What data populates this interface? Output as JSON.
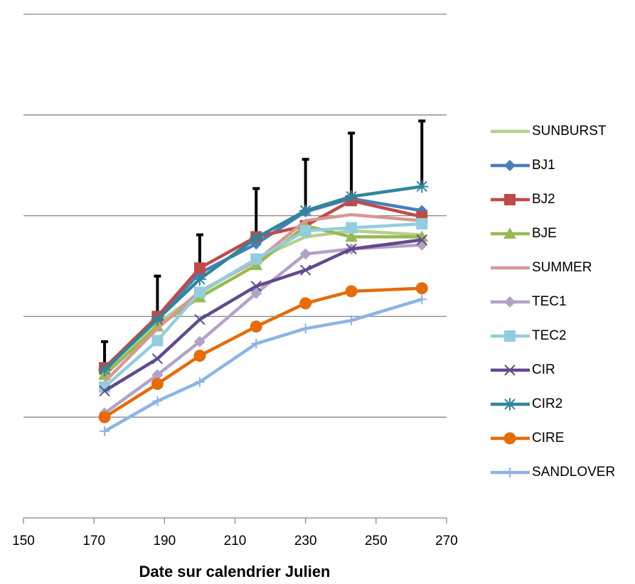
{
  "chart_data": {
    "type": "line",
    "x_label": "Date sur calendrier Julien",
    "x": [
      173,
      188,
      200,
      216,
      230,
      243,
      263
    ],
    "xlim": [
      150,
      270
    ],
    "xticks": [
      150,
      170,
      190,
      210,
      230,
      250,
      270
    ],
    "ylim": [
      0,
      5
    ],
    "yticks": [
      1,
      2,
      3,
      4,
      5
    ],
    "grid": true,
    "legend": "right",
    "series": [
      {
        "name": "SUNBURST",
        "color": "#b3d08f",
        "marker": "none",
        "values": [
          1.42,
          1.93,
          2.23,
          2.57,
          2.79,
          2.85,
          2.81
        ]
      },
      {
        "name": "BJ1",
        "color": "#4a7ebb",
        "marker": "diamond",
        "values": [
          1.46,
          1.99,
          2.43,
          2.72,
          3.04,
          3.17,
          3.05
        ]
      },
      {
        "name": "BJ2",
        "color": "#be4b48",
        "marker": "square",
        "values": [
          1.49,
          2.0,
          2.48,
          2.79,
          2.9,
          3.15,
          2.99
        ]
      },
      {
        "name": "BJE",
        "color": "#98b954",
        "marker": "triangle",
        "values": [
          1.42,
          1.9,
          2.19,
          2.51,
          2.9,
          2.79,
          2.79
        ]
      },
      {
        "name": "SUMMER",
        "color": "#d99694",
        "marker": "none",
        "values": [
          1.35,
          1.88,
          2.25,
          2.55,
          2.95,
          3.01,
          2.95
        ]
      },
      {
        "name": "TEC1",
        "color": "#b3a2c7",
        "marker": "diamond",
        "values": [
          1.04,
          1.42,
          1.75,
          2.23,
          2.62,
          2.67,
          2.71
        ]
      },
      {
        "name": "TEC2",
        "color": "#93cddd",
        "marker": "square",
        "values": [
          1.3,
          1.76,
          2.24,
          2.57,
          2.85,
          2.88,
          2.92
        ]
      },
      {
        "name": "CIR",
        "color": "#5f4b8b",
        "marker": "x",
        "values": [
          1.26,
          1.58,
          1.97,
          2.3,
          2.46,
          2.67,
          2.76
        ]
      },
      {
        "name": "CIR2",
        "color": "#31859c",
        "marker": "star",
        "values": [
          1.47,
          1.97,
          2.37,
          2.78,
          3.05,
          3.19,
          3.29
        ],
        "errors": [
          0.28,
          0.43,
          0.44,
          0.49,
          0.51,
          0.63,
          0.65
        ]
      },
      {
        "name": "CIRE",
        "color": "#e46c0a",
        "marker": "circle",
        "values": [
          1.0,
          1.33,
          1.61,
          1.9,
          2.13,
          2.25,
          2.28
        ]
      },
      {
        "name": "SANDLOVER",
        "color": "#8eb4e3",
        "marker": "plus",
        "values": [
          0.86,
          1.16,
          1.35,
          1.73,
          1.88,
          1.96,
          2.17
        ]
      }
    ]
  }
}
